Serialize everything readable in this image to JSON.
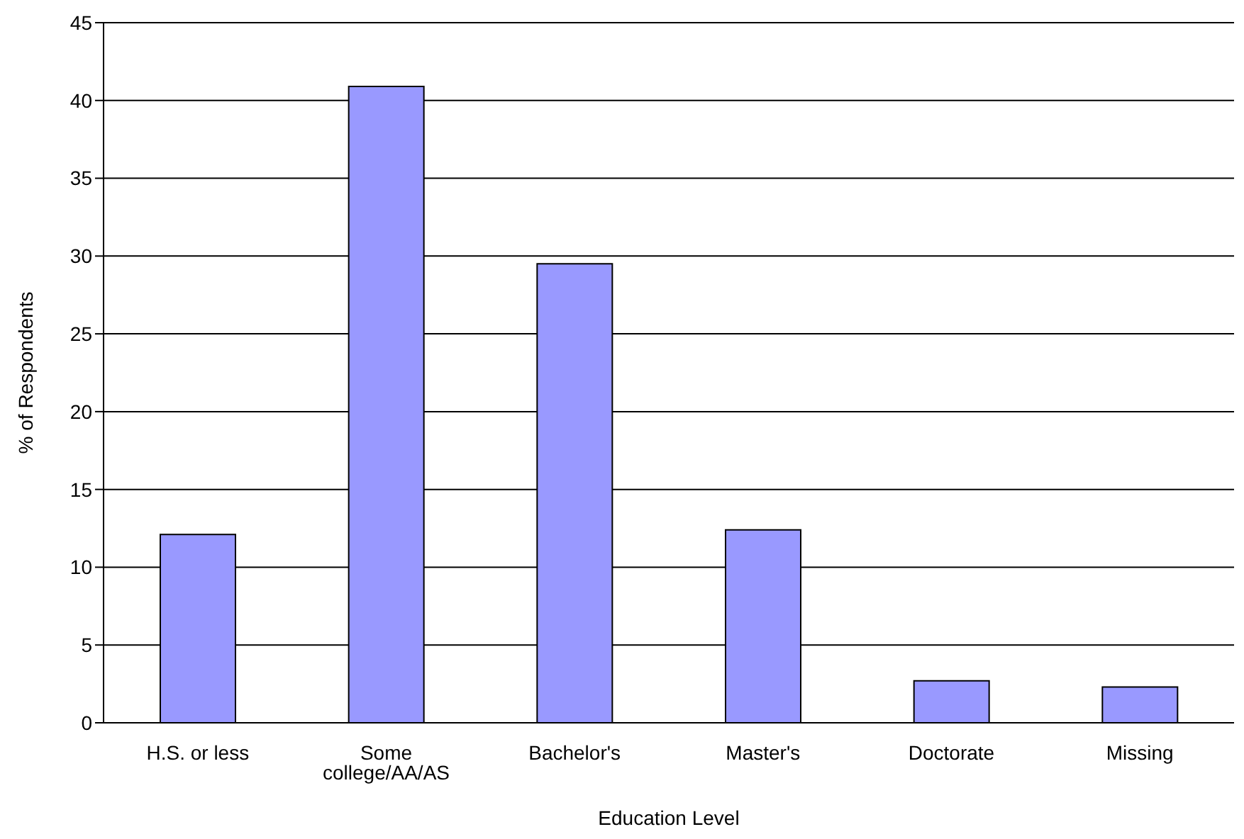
{
  "chart_data": {
    "type": "bar",
    "xlabel": "Education Level",
    "ylabel": "% of Respondents",
    "categories": [
      "H.S. or less",
      "Some college/AA/AS",
      "Bachelor's",
      "Master's",
      "Doctorate",
      "Missing"
    ],
    "values": [
      12.1,
      40.9,
      29.5,
      12.4,
      2.7,
      2.3
    ],
    "color": "#9999ff",
    "ylim": [
      0,
      45
    ],
    "yticks": [
      0,
      5,
      10,
      15,
      20,
      25,
      30,
      35,
      40,
      45
    ],
    "grid": "y",
    "legend": false
  }
}
